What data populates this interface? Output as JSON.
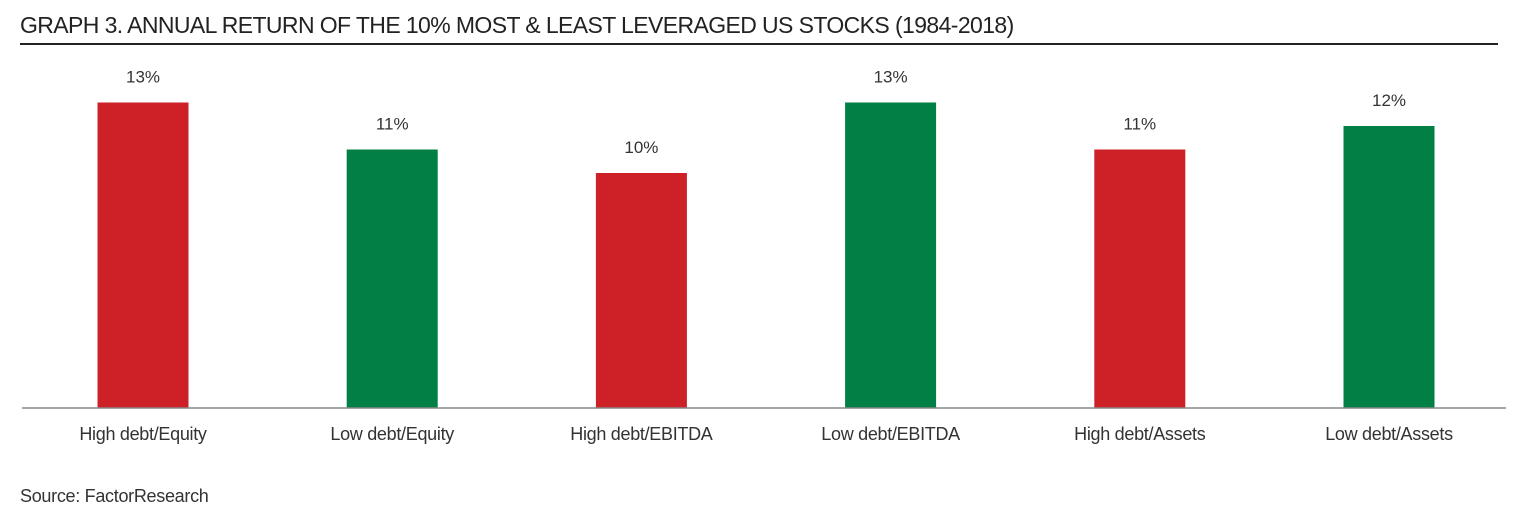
{
  "title": "GRAPH 3.  ANNUAL RETURN OF THE 10% MOST & LEAST LEVERAGED US STOCKS (1984-2018)",
  "source": "Source: FactorResearch",
  "colors": {
    "high": "#cd2027",
    "low": "#008044",
    "axis": "#888888",
    "text": "#333333"
  },
  "chart_data": {
    "type": "bar",
    "title": "GRAPH 3.  ANNUAL RETURN OF THE 10% MOST & LEAST LEVERAGED US STOCKS (1984-2018)",
    "xlabel": "",
    "ylabel": "",
    "ylim": [
      0,
      13
    ],
    "grid": false,
    "categories": [
      "High debt/Equity",
      "Low debt/Equity",
      "High debt/EBITDA",
      "Low debt/EBITDA",
      "High debt/Assets",
      "Low debt/Assets"
    ],
    "values": [
      13,
      11,
      10,
      13,
      11,
      12
    ],
    "value_labels": [
      "13%",
      "11%",
      "10%",
      "13%",
      "11%",
      "12%"
    ],
    "bar_groups": [
      "high",
      "low",
      "high",
      "low",
      "high",
      "low"
    ]
  }
}
